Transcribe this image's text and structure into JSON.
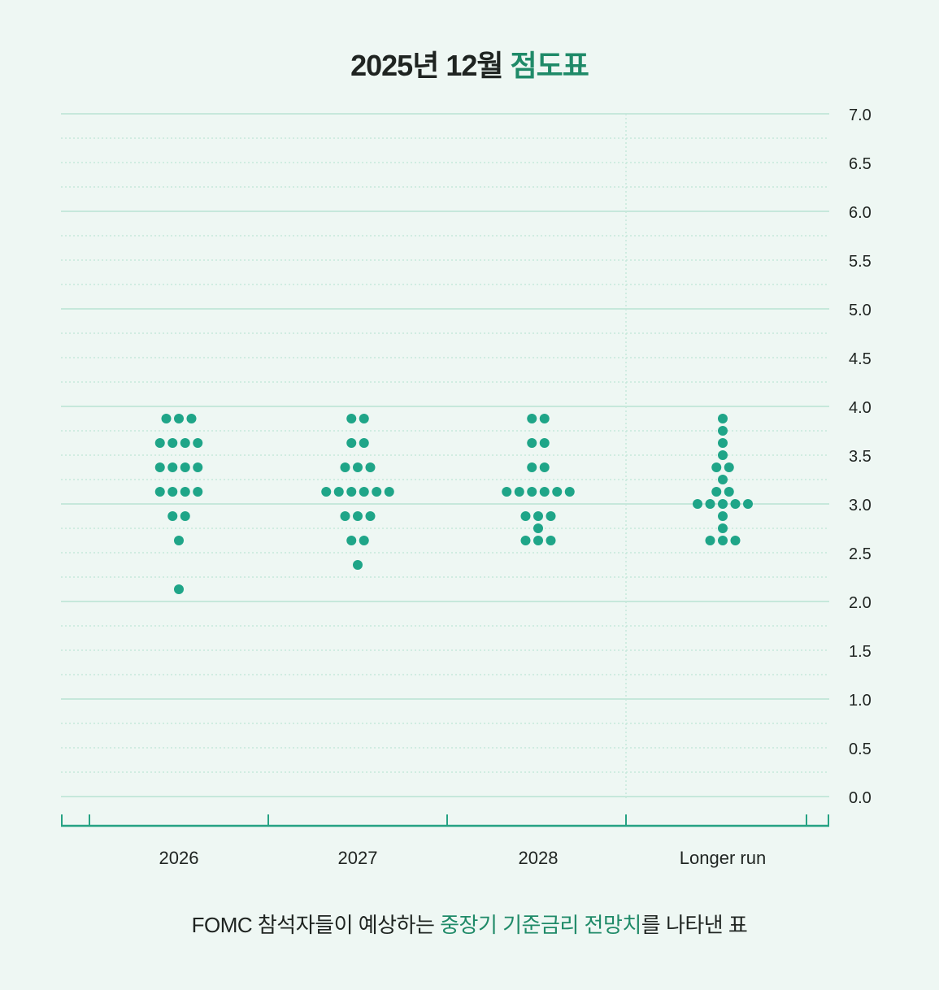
{
  "title": {
    "prefix": "2025년 12월",
    "highlight": "점도표"
  },
  "caption": {
    "before": "FOMC 참석자들이 예상하는",
    "highlight": "중장기 기준금리 전망치",
    "after": "를 나타낸 표"
  },
  "colors": {
    "dot": "#1fa588",
    "grid": "#c6e8db",
    "axis": "#26a283",
    "accent": "#1f8a68"
  },
  "chart_data": {
    "type": "scatter",
    "title": "2025년 12월 점도표",
    "categories": [
      "2026",
      "2027",
      "2028",
      "Longer run"
    ],
    "yticks": [
      "7.0",
      "6.5",
      "6.0",
      "5.5",
      "5.0",
      "4.5",
      "4.0",
      "3.5",
      "3.0",
      "2.5",
      "2.0",
      "1.5",
      "1.0",
      "0.5",
      "0.0"
    ],
    "ylim": [
      0,
      7
    ],
    "y_axis_side": "right",
    "grid": true,
    "series": [
      {
        "category": "2026",
        "dots": [
          {
            "y": 3.875,
            "count": 3
          },
          {
            "y": 3.625,
            "count": 4
          },
          {
            "y": 3.375,
            "count": 4
          },
          {
            "y": 3.125,
            "count": 4
          },
          {
            "y": 2.875,
            "count": 2
          },
          {
            "y": 2.625,
            "count": 1
          },
          {
            "y": 2.125,
            "count": 1
          }
        ]
      },
      {
        "category": "2027",
        "dots": [
          {
            "y": 3.875,
            "count": 2
          },
          {
            "y": 3.625,
            "count": 2
          },
          {
            "y": 3.375,
            "count": 3
          },
          {
            "y": 3.125,
            "count": 6
          },
          {
            "y": 2.875,
            "count": 3
          },
          {
            "y": 2.625,
            "count": 2
          },
          {
            "y": 2.375,
            "count": 1
          }
        ]
      },
      {
        "category": "2028",
        "dots": [
          {
            "y": 3.875,
            "count": 2
          },
          {
            "y": 3.625,
            "count": 2
          },
          {
            "y": 3.375,
            "count": 2
          },
          {
            "y": 3.125,
            "count": 6
          },
          {
            "y": 2.875,
            "count": 3
          },
          {
            "y": 2.75,
            "count": 1
          },
          {
            "y": 2.625,
            "count": 3
          }
        ]
      },
      {
        "category": "Longer run",
        "dots": [
          {
            "y": 3.875,
            "count": 1
          },
          {
            "y": 3.75,
            "count": 1
          },
          {
            "y": 3.625,
            "count": 1
          },
          {
            "y": 3.5,
            "count": 1
          },
          {
            "y": 3.375,
            "count": 2
          },
          {
            "y": 3.25,
            "count": 1
          },
          {
            "y": 3.125,
            "count": 2
          },
          {
            "y": 3.0,
            "count": 5
          },
          {
            "y": 2.875,
            "count": 1
          },
          {
            "y": 2.75,
            "count": 1
          },
          {
            "y": 2.625,
            "count": 3
          }
        ]
      }
    ]
  }
}
